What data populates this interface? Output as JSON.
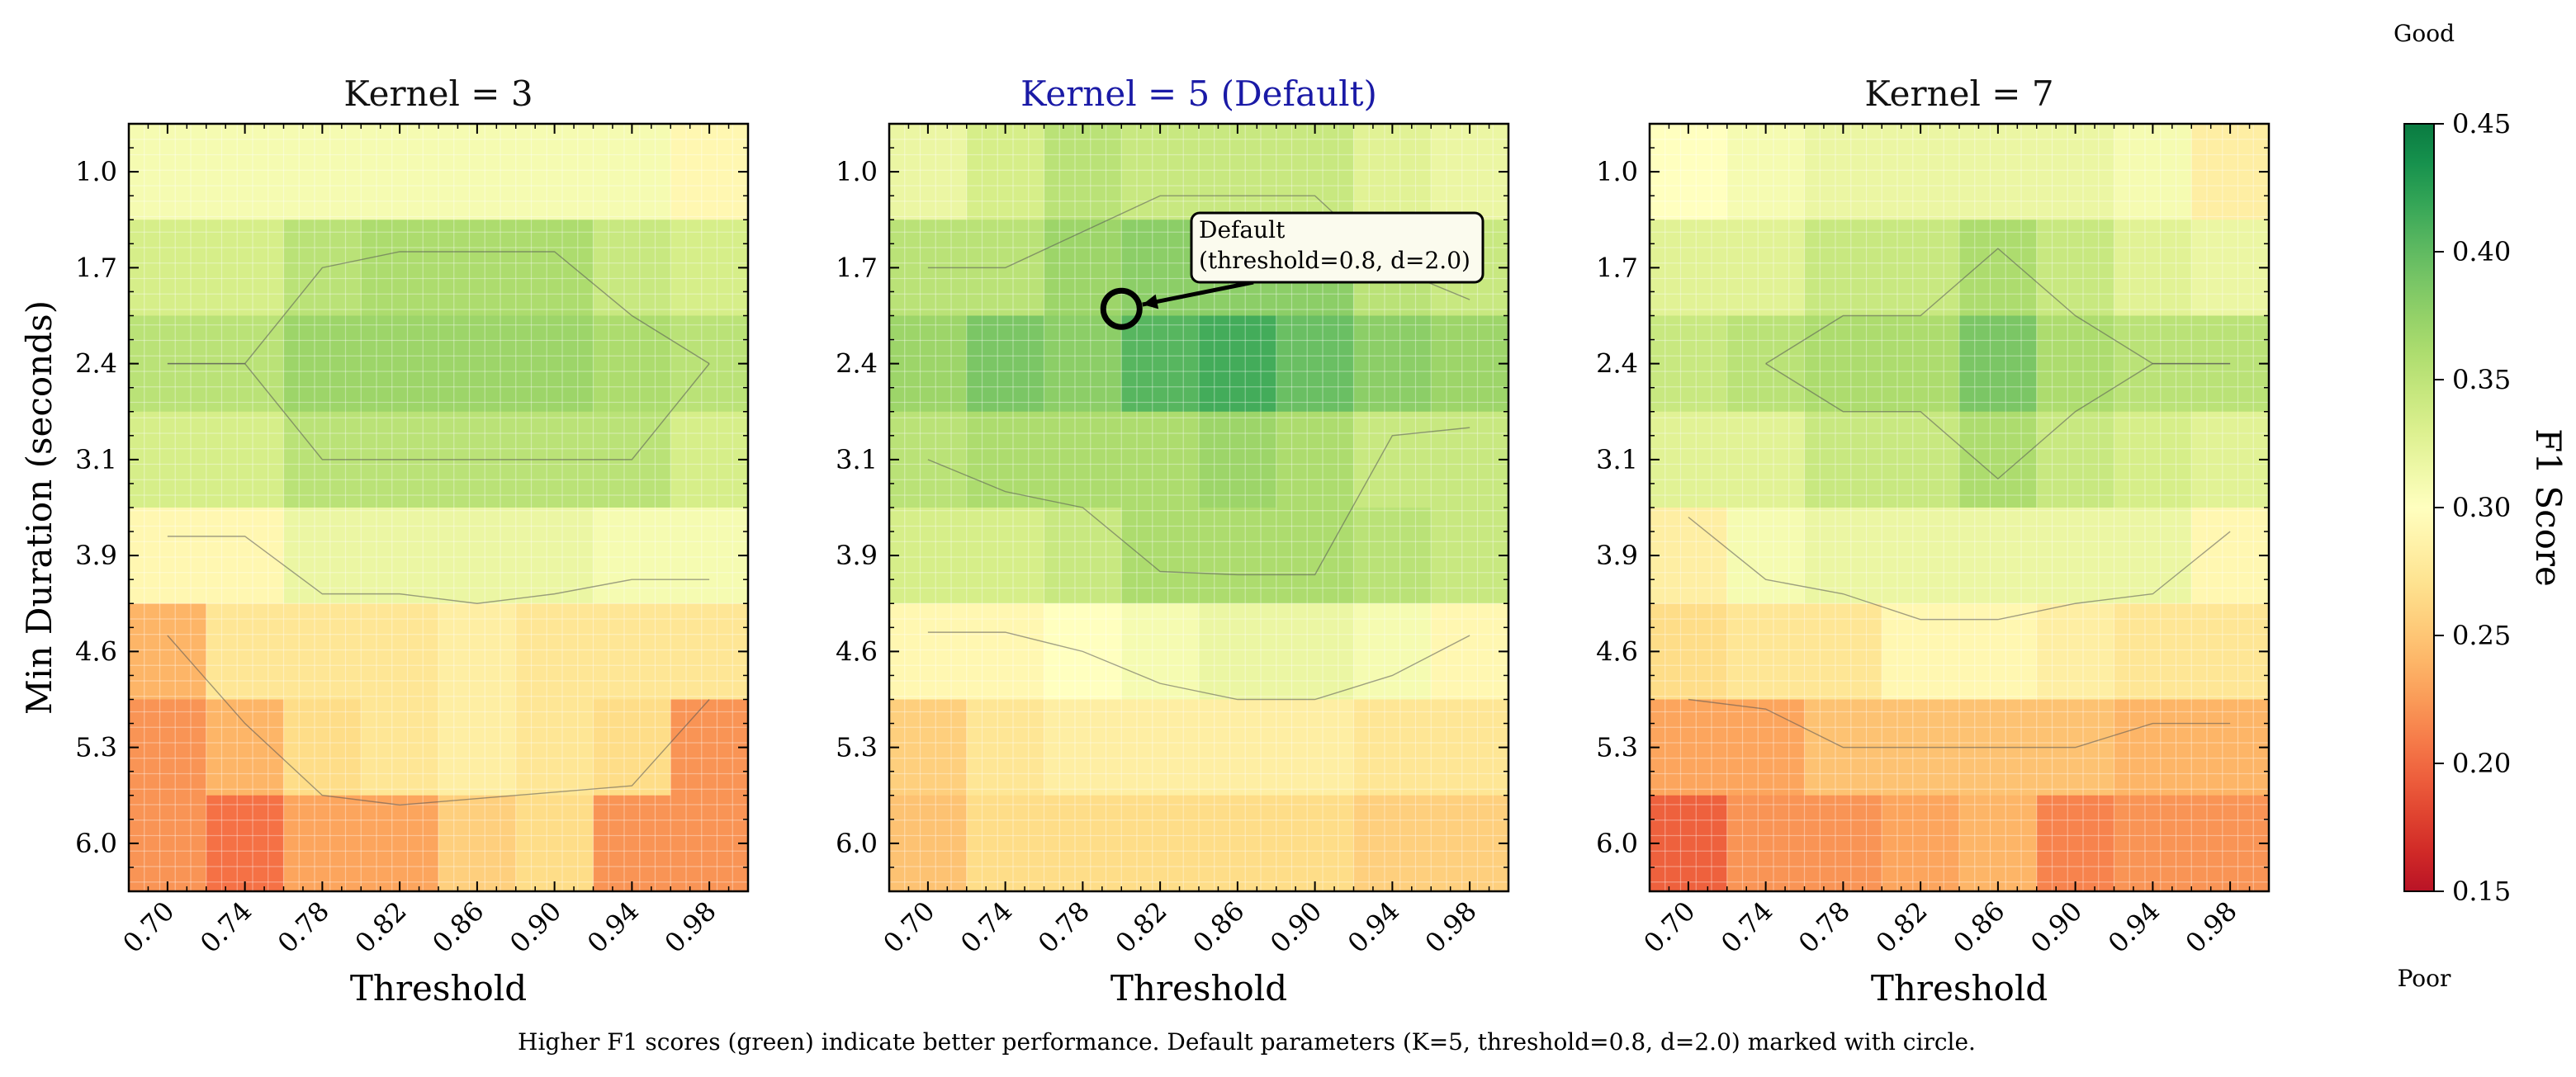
{
  "panels": [
    {
      "title": "Kernel = 3"
    },
    {
      "title": "Kernel = 5 (Default)",
      "title_color": "#1a1aa6"
    },
    {
      "title": "Kernel = 7"
    }
  ],
  "axes": {
    "ylabel": "Min Duration (seconds)",
    "xlabel": "Threshold",
    "xticks": [
      "0.70",
      "0.74",
      "0.78",
      "0.82",
      "0.86",
      "0.90",
      "0.94",
      "0.98"
    ],
    "yticks": [
      "1.0",
      "1.7",
      "2.4",
      "3.1",
      "3.9",
      "4.6",
      "5.3",
      "6.0"
    ]
  },
  "colorbar": {
    "label": "F1 Score",
    "top_text": "Good",
    "bottom_text": "Poor",
    "ticks": [
      "0.45",
      "0.40",
      "0.35",
      "0.30",
      "0.25",
      "0.20",
      "0.15"
    ],
    "colormap": "RdYlGn"
  },
  "annotation": {
    "line1": "Default",
    "line2": "(threshold=0.8, d=2.0)"
  },
  "caption": "Higher F1 scores (green) indicate better performance. Default parameters (K=5, threshold=0.8, d=2.0) marked with circle.",
  "chart_data": {
    "type": "heatmap",
    "x": [
      0.7,
      0.74,
      0.78,
      0.82,
      0.86,
      0.9,
      0.94,
      0.98
    ],
    "y": [
      1.0,
      1.7,
      2.4,
      3.1,
      3.9,
      4.6,
      5.3,
      6.0
    ],
    "xlabel": "Threshold",
    "ylabel": "Min Duration (seconds)",
    "zlabel": "F1 Score",
    "zlim": [
      0.15,
      0.45
    ],
    "colormap": "RdYlGn",
    "contours": true,
    "panels": [
      {
        "name": "Kernel = 3",
        "z": [
          [
            0.31,
            0.31,
            0.31,
            0.31,
            0.31,
            0.31,
            0.31,
            0.29
          ],
          [
            0.34,
            0.34,
            0.36,
            0.37,
            0.37,
            0.37,
            0.35,
            0.34
          ],
          [
            0.36,
            0.36,
            0.38,
            0.38,
            0.38,
            0.38,
            0.37,
            0.36
          ],
          [
            0.34,
            0.34,
            0.36,
            0.36,
            0.36,
            0.36,
            0.36,
            0.34
          ],
          [
            0.29,
            0.29,
            0.32,
            0.32,
            0.32,
            0.32,
            0.31,
            0.31
          ],
          [
            0.23,
            0.27,
            0.27,
            0.27,
            0.28,
            0.27,
            0.27,
            0.27
          ],
          [
            0.21,
            0.23,
            0.26,
            0.27,
            0.28,
            0.27,
            0.26,
            0.21
          ],
          [
            0.21,
            0.19,
            0.22,
            0.22,
            0.25,
            0.26,
            0.21,
            0.21
          ]
        ]
      },
      {
        "name": "Kernel = 5 (Default)",
        "z": [
          [
            0.32,
            0.34,
            0.36,
            0.35,
            0.35,
            0.35,
            0.33,
            0.32
          ],
          [
            0.36,
            0.36,
            0.38,
            0.39,
            0.39,
            0.39,
            0.36,
            0.35
          ],
          [
            0.38,
            0.4,
            0.39,
            0.42,
            0.43,
            0.41,
            0.39,
            0.38
          ],
          [
            0.36,
            0.37,
            0.37,
            0.37,
            0.38,
            0.37,
            0.35,
            0.35
          ],
          [
            0.34,
            0.34,
            0.35,
            0.37,
            0.37,
            0.37,
            0.36,
            0.35
          ],
          [
            0.29,
            0.29,
            0.3,
            0.31,
            0.32,
            0.32,
            0.31,
            0.29
          ],
          [
            0.25,
            0.27,
            0.28,
            0.28,
            0.28,
            0.28,
            0.27,
            0.27
          ],
          [
            0.24,
            0.26,
            0.26,
            0.26,
            0.26,
            0.26,
            0.25,
            0.25
          ]
        ]
      },
      {
        "name": "Kernel = 7",
        "z": [
          [
            0.3,
            0.31,
            0.32,
            0.32,
            0.32,
            0.32,
            0.31,
            0.28
          ],
          [
            0.33,
            0.33,
            0.35,
            0.35,
            0.37,
            0.35,
            0.33,
            0.32
          ],
          [
            0.35,
            0.36,
            0.37,
            0.37,
            0.4,
            0.37,
            0.36,
            0.36
          ],
          [
            0.33,
            0.33,
            0.35,
            0.35,
            0.37,
            0.35,
            0.34,
            0.33
          ],
          [
            0.28,
            0.31,
            0.32,
            0.32,
            0.32,
            0.32,
            0.32,
            0.29
          ],
          [
            0.26,
            0.27,
            0.27,
            0.29,
            0.29,
            0.28,
            0.27,
            0.27
          ],
          [
            0.22,
            0.22,
            0.24,
            0.24,
            0.24,
            0.24,
            0.23,
            0.23
          ],
          [
            0.18,
            0.21,
            0.21,
            0.22,
            0.23,
            0.2,
            0.21,
            0.21
          ]
        ]
      }
    ],
    "marker": {
      "panel": "Kernel = 5 (Default)",
      "threshold": 0.8,
      "min_duration": 2.0
    }
  }
}
